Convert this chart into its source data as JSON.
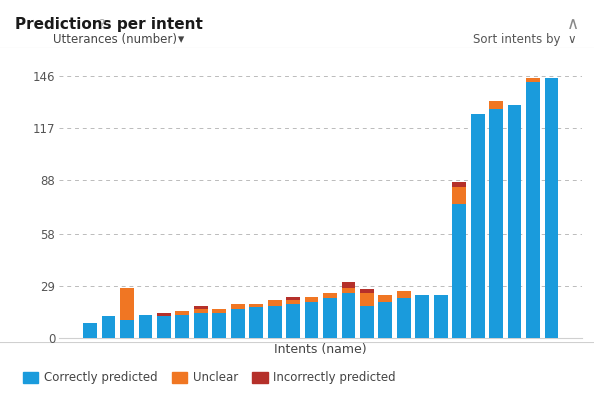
{
  "title": "Predictions per intent",
  "title_question_mark": "?",
  "ylabel": "Utterances (number)",
  "xlabel": "Intents (name)",
  "yticks": [
    0,
    29,
    58,
    88,
    117,
    146
  ],
  "ylim": [
    0,
    155
  ],
  "correctly_predicted": [
    8,
    12,
    10,
    13,
    12,
    13,
    14,
    14,
    16,
    17,
    18,
    19,
    20,
    22,
    25,
    18,
    20,
    22,
    24,
    24,
    75,
    125,
    128,
    130,
    143,
    145
  ],
  "unclear": [
    0,
    0,
    18,
    0,
    0,
    2,
    2,
    2,
    3,
    2,
    3,
    2,
    3,
    3,
    3,
    7,
    4,
    4,
    0,
    0,
    9,
    0,
    4,
    0,
    2,
    0
  ],
  "incorrectly_predicted": [
    0,
    0,
    0,
    0,
    2,
    0,
    2,
    0,
    0,
    0,
    0,
    2,
    0,
    0,
    3,
    2,
    0,
    0,
    0,
    0,
    3,
    0,
    0,
    0,
    0,
    0
  ],
  "color_correct": "#1a9bdc",
  "color_unclear": "#f07623",
  "color_incorrect": "#b5302a",
  "background_color": "#ffffff",
  "header_bg": "#f8f8f8",
  "border_color": "#d0d0d0",
  "bar_width": 0.75,
  "legend_labels": [
    "Correctly predicted",
    "Unclear",
    "Incorrectly predicted"
  ],
  "grid_color": "#bbbbbb",
  "tick_color": "#555555",
  "label_color": "#444444"
}
